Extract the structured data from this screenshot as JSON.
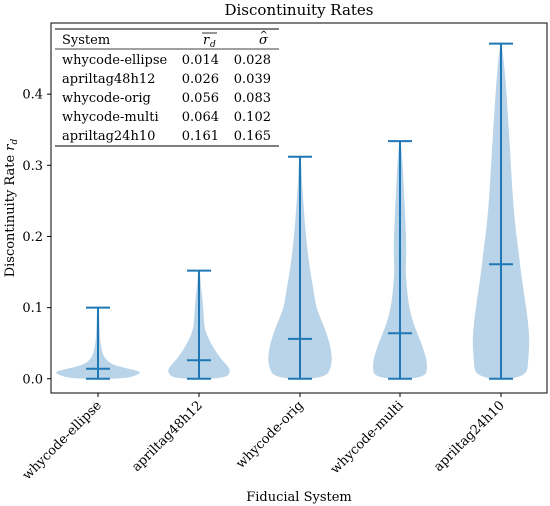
{
  "chart_data": {
    "type": "violin",
    "title": "Discontinuity Rates",
    "xlabel": "Fiducial System",
    "ylabel": "Discontinuity Rate r_d",
    "ylim": [
      -0.02,
      0.5
    ],
    "yticks": [
      "0.0",
      "0.1",
      "0.2",
      "0.3",
      "0.4"
    ],
    "yticks_values": [
      0.0,
      0.1,
      0.2,
      0.3,
      0.4
    ],
    "grid": false,
    "colors": {
      "violin_fill": "#b9d3e8",
      "whisker": "#1f77b4",
      "frame": "#000000"
    },
    "categories": [
      "whycode-ellipse",
      "apriltag48h12",
      "whycode-orig",
      "whycode-multi",
      "apriltag24h10"
    ],
    "violins": [
      {
        "min": 0.0,
        "max": 0.1,
        "median": 0.014,
        "profile": [
          [
            0.0,
            0.55
          ],
          [
            0.005,
            0.85
          ],
          [
            0.01,
            0.95
          ],
          [
            0.015,
            0.6
          ],
          [
            0.02,
            0.3
          ],
          [
            0.03,
            0.12
          ],
          [
            0.05,
            0.05
          ],
          [
            0.08,
            0.03
          ],
          [
            0.1,
            0.02
          ]
        ]
      },
      {
        "min": 0.0,
        "max": 0.152,
        "median": 0.026,
        "profile": [
          [
            0.0,
            0.55
          ],
          [
            0.01,
            0.7
          ],
          [
            0.02,
            0.6
          ],
          [
            0.03,
            0.45
          ],
          [
            0.05,
            0.25
          ],
          [
            0.07,
            0.12
          ],
          [
            0.09,
            0.1
          ],
          [
            0.11,
            0.08
          ],
          [
            0.13,
            0.04
          ],
          [
            0.152,
            0.02
          ]
        ]
      },
      {
        "min": 0.0,
        "max": 0.312,
        "median": 0.056,
        "profile": [
          [
            0.0,
            0.55
          ],
          [
            0.02,
            0.7
          ],
          [
            0.04,
            0.68
          ],
          [
            0.06,
            0.6
          ],
          [
            0.08,
            0.48
          ],
          [
            0.1,
            0.35
          ],
          [
            0.13,
            0.28
          ],
          [
            0.16,
            0.2
          ],
          [
            0.2,
            0.13
          ],
          [
            0.24,
            0.08
          ],
          [
            0.28,
            0.04
          ],
          [
            0.312,
            0.02
          ]
        ]
      },
      {
        "min": 0.0,
        "max": 0.334,
        "median": 0.064,
        "profile": [
          [
            0.0,
            0.55
          ],
          [
            0.02,
            0.6
          ],
          [
            0.04,
            0.52
          ],
          [
            0.06,
            0.4
          ],
          [
            0.08,
            0.28
          ],
          [
            0.1,
            0.2
          ],
          [
            0.12,
            0.16
          ],
          [
            0.15,
            0.12
          ],
          [
            0.18,
            0.14
          ],
          [
            0.22,
            0.12
          ],
          [
            0.26,
            0.09
          ],
          [
            0.3,
            0.06
          ],
          [
            0.334,
            0.02
          ]
        ]
      },
      {
        "min": 0.0,
        "max": 0.471,
        "median": 0.161,
        "profile": [
          [
            0.0,
            0.55
          ],
          [
            0.03,
            0.6
          ],
          [
            0.06,
            0.62
          ],
          [
            0.1,
            0.55
          ],
          [
            0.14,
            0.45
          ],
          [
            0.18,
            0.38
          ],
          [
            0.22,
            0.3
          ],
          [
            0.27,
            0.24
          ],
          [
            0.32,
            0.2
          ],
          [
            0.37,
            0.15
          ],
          [
            0.42,
            0.1
          ],
          [
            0.471,
            0.02
          ]
        ]
      }
    ],
    "table": {
      "headers": [
        "System",
        "r_d (mean)",
        "sigma"
      ],
      "rows": [
        [
          "whycode-ellipse",
          "0.014",
          "0.028"
        ],
        [
          "apriltag48h12",
          "0.026",
          "0.039"
        ],
        [
          "whycode-orig",
          "0.056",
          "0.083"
        ],
        [
          "whycode-multi",
          "0.064",
          "0.102"
        ],
        [
          "apriltag24h10",
          "0.161",
          "0.165"
        ]
      ]
    }
  }
}
